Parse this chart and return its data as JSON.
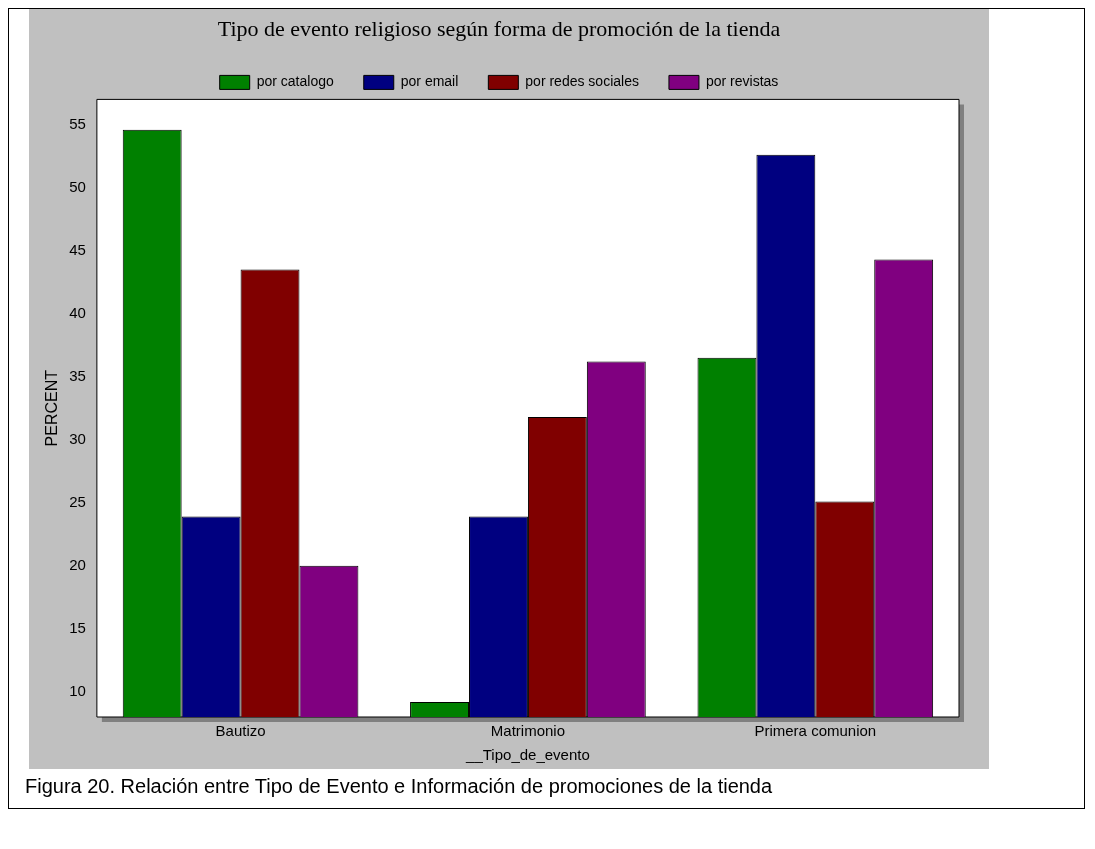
{
  "chart_data": {
    "type": "bar",
    "title": "Tipo de evento religioso según forma de promoción de la tienda",
    "xlabel": "__Tipo_de_evento",
    "ylabel": "PERCENT",
    "categories": [
      "Bautizo",
      "Matrimonio",
      "Primera comunion"
    ],
    "series": [
      {
        "name": "por catalogo",
        "color": "#008000",
        "values": [
          54.6,
          9.2,
          36.5
        ]
      },
      {
        "name": "por email",
        "color": "#000080",
        "values": [
          23.9,
          23.9,
          52.6
        ]
      },
      {
        "name": "por redes sociales",
        "color": "#800000",
        "values": [
          43.5,
          31.8,
          25.1
        ]
      },
      {
        "name": "por revistas",
        "color": "#800080",
        "values": [
          20.0,
          36.2,
          44.3
        ]
      }
    ],
    "ylim": [
      8,
      57
    ],
    "yticks": [
      10,
      15,
      20,
      25,
      30,
      35,
      40,
      45,
      50,
      55
    ],
    "grid": false,
    "legend": "top",
    "annotations": [
      "Figura 20.  Relación entre Tipo de Evento e Información de promociones de la tienda"
    ]
  }
}
